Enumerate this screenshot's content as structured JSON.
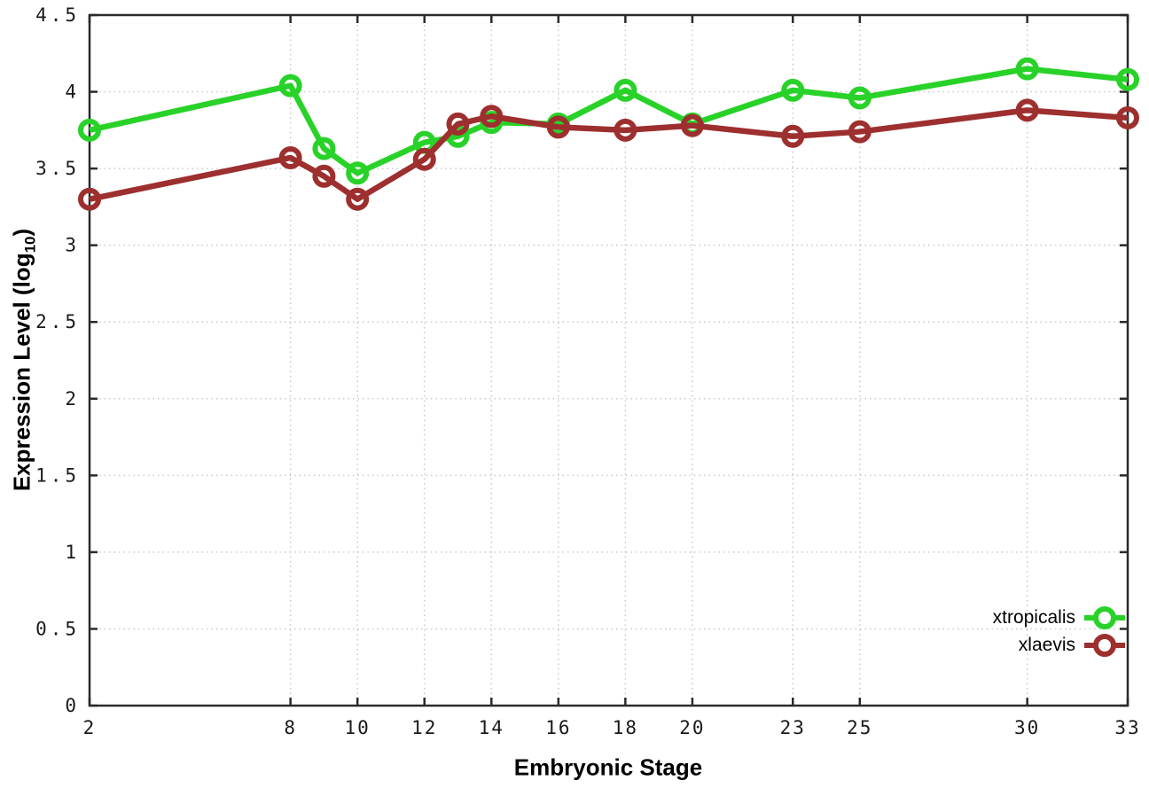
{
  "chart_data": {
    "type": "line",
    "xlabel": "Embryonic Stage",
    "ylabel": "Expression Level (log10)",
    "ylabel_parts": {
      "pre": "Expression Level (log",
      "sub": "10",
      "post": ")"
    },
    "x": [
      2,
      8,
      9,
      10,
      12,
      13,
      14,
      16,
      18,
      20,
      23,
      25,
      30,
      33
    ],
    "xtick_labels": [
      "2",
      "8",
      "10",
      "12",
      "14",
      "16",
      "18",
      "20",
      "23",
      "25",
      "30",
      "33"
    ],
    "xticks": [
      2,
      8,
      10,
      12,
      14,
      16,
      18,
      20,
      23,
      25,
      30,
      33
    ],
    "ytick_labels": [
      "0",
      "0.5",
      "1",
      "1.5",
      "2",
      "2.5",
      "3",
      "3.5",
      "4",
      "4.5"
    ],
    "yticks": [
      0,
      0.5,
      1,
      1.5,
      2,
      2.5,
      3,
      3.5,
      4,
      4.5
    ],
    "xlim": [
      2,
      33
    ],
    "ylim": [
      0,
      4.5
    ],
    "grid": true,
    "legend_position": "bottom-right",
    "series": [
      {
        "name": "xtropicalis",
        "color": "#28d228",
        "values": [
          3.75,
          4.04,
          3.63,
          3.47,
          3.67,
          3.71,
          3.8,
          3.79,
          4.01,
          3.79,
          4.01,
          3.96,
          4.15,
          4.08
        ]
      },
      {
        "name": "xlaevis",
        "color": "#9e2f2f",
        "values": [
          3.3,
          3.57,
          3.45,
          3.3,
          3.56,
          3.79,
          3.84,
          3.77,
          3.75,
          3.78,
          3.71,
          3.74,
          3.88,
          3.83
        ]
      }
    ]
  },
  "style_colors": {
    "grid": "#c9c9c9",
    "border": "#2a2a2a",
    "tick_text": "#1a1a1a"
  }
}
